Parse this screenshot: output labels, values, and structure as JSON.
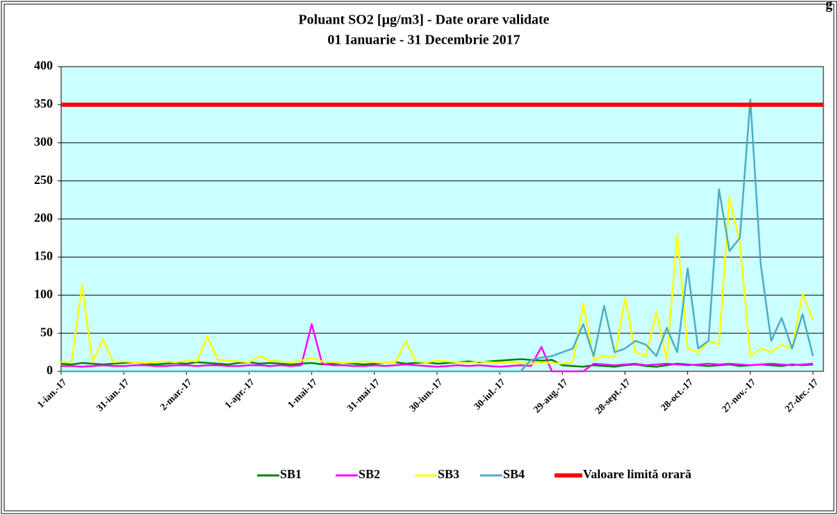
{
  "chart_data": {
    "type": "line",
    "title": "Poluant SO2 [µg/m3] - Date orare validate",
    "subtitle": "01 Ianuarie  - 31 Decembrie 2017",
    "corner_text": "g",
    "x": [
      0,
      5,
      10,
      15,
      20,
      25,
      30,
      35,
      40,
      45,
      50,
      55,
      60,
      65,
      70,
      75,
      80,
      85,
      90,
      95,
      100,
      105,
      110,
      115,
      120,
      125,
      130,
      135,
      140,
      145,
      150,
      155,
      160,
      165,
      170,
      175,
      180,
      185,
      190,
      195,
      200,
      205,
      210,
      215,
      220,
      225,
      230,
      235,
      240,
      245,
      250,
      255,
      260,
      265,
      270,
      275,
      280,
      285,
      290,
      295,
      300,
      305,
      310,
      315,
      320,
      325,
      330,
      335,
      340,
      345,
      350,
      355,
      360
    ],
    "xlim": [
      0,
      365
    ],
    "xticks": [
      {
        "value": 0,
        "label": "1-ian.-17"
      },
      {
        "value": 30,
        "label": "31-ian.-17"
      },
      {
        "value": 60,
        "label": "2-mar.-17"
      },
      {
        "value": 90,
        "label": "1-apr.-17"
      },
      {
        "value": 120,
        "label": "1-mai-17"
      },
      {
        "value": 150,
        "label": "31-mai-17"
      },
      {
        "value": 180,
        "label": "30-iun.-17"
      },
      {
        "value": 210,
        "label": "30-iul.-17"
      },
      {
        "value": 240,
        "label": "29-aug.-17"
      },
      {
        "value": 270,
        "label": "28-sept.-17"
      },
      {
        "value": 300,
        "label": "28-oct.-17"
      },
      {
        "value": 330,
        "label": "27-nov.-17"
      },
      {
        "value": 360,
        "label": "27-dec.-17"
      }
    ],
    "ylim": [
      0,
      400
    ],
    "yticks": [
      0,
      50,
      100,
      150,
      200,
      250,
      300,
      350,
      400
    ],
    "grid": true,
    "legend": "bottom",
    "series": [
      {
        "name": "SB1",
        "color": "#008000",
        "values": [
          10,
          9,
          11,
          10,
          9,
          10,
          11,
          12,
          10,
          9,
          10,
          11,
          10,
          12,
          11,
          10,
          9,
          11,
          12,
          10,
          11,
          10,
          9,
          10,
          11,
          9,
          10,
          11,
          10,
          9,
          10,
          11,
          12,
          10,
          11,
          12,
          10,
          11,
          12,
          13,
          12,
          13,
          14,
          15,
          16,
          15,
          14,
          15,
          8,
          7,
          6,
          8,
          7,
          6,
          8,
          9,
          7,
          6,
          8,
          10,
          9,
          8,
          7,
          8,
          9,
          7,
          8,
          9,
          8,
          7,
          9,
          8,
          9
        ]
      },
      {
        "name": "SB2",
        "color": "#ff00ff",
        "values": [
          7,
          7,
          6,
          7,
          8,
          7,
          7,
          8,
          8,
          7,
          7,
          8,
          8,
          7,
          8,
          8,
          7,
          7,
          8,
          8,
          7,
          8,
          7,
          8,
          62,
          10,
          8,
          8,
          7,
          7,
          8,
          7,
          8,
          9,
          8,
          7,
          6,
          7,
          8,
          7,
          8,
          7,
          6,
          7,
          8,
          7,
          32,
          0,
          0,
          0,
          0,
          10,
          9,
          8,
          9,
          10,
          8,
          9,
          10,
          9,
          8,
          9,
          10,
          9,
          10,
          9,
          8,
          9,
          10,
          9,
          8,
          9,
          10
        ]
      },
      {
        "name": "SB3",
        "color": "#ffff00",
        "values": [
          12,
          13,
          113,
          12,
          42,
          12,
          13,
          12,
          11,
          12,
          13,
          12,
          14,
          13,
          46,
          15,
          14,
          13,
          12,
          20,
          14,
          13,
          12,
          14,
          18,
          13,
          12,
          11,
          12,
          13,
          12,
          11,
          12,
          39,
          13,
          12,
          14,
          13,
          12,
          11,
          13,
          12,
          11,
          12,
          11,
          10,
          12,
          11,
          10,
          12,
          89,
          15,
          20,
          18,
          96,
          25,
          20,
          78,
          15,
          179,
          30,
          25,
          40,
          35,
          228,
          168,
          20,
          30,
          25,
          35,
          30,
          102,
          67
        ]
      },
      {
        "name": "SB4",
        "color": "#4bacc6",
        "values": [
          0,
          0,
          0,
          0,
          0,
          0,
          0,
          0,
          0,
          0,
          0,
          0,
          0,
          0,
          0,
          0,
          0,
          0,
          0,
          0,
          0,
          0,
          0,
          0,
          0,
          0,
          0,
          0,
          0,
          0,
          0,
          0,
          0,
          0,
          0,
          0,
          0,
          0,
          0,
          0,
          0,
          0,
          0,
          0,
          0,
          15,
          18,
          20,
          25,
          30,
          62,
          20,
          86,
          25,
          30,
          40,
          35,
          20,
          57,
          25,
          135,
          30,
          40,
          239,
          158,
          175,
          357,
          140,
          40,
          70,
          30,
          75,
          20
        ]
      }
    ],
    "limit_line": {
      "name": "Valoare limită orară",
      "color": "#ff0000",
      "value": 350
    }
  }
}
